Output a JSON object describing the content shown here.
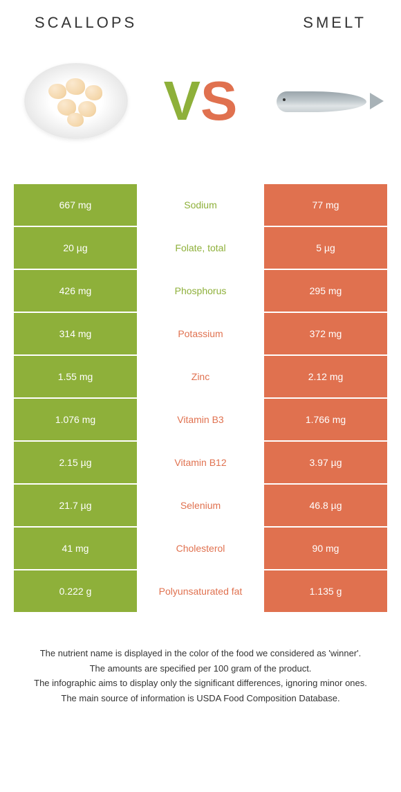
{
  "header": {
    "left_title": "SCALLOPS",
    "right_title": "SMELT"
  },
  "vs": {
    "v": "V",
    "s": "S"
  },
  "colors": {
    "green": "#8eb03a",
    "orange": "#e0714f",
    "bg": "#ffffff"
  },
  "rows": [
    {
      "nutrient": "Sodium",
      "left": "667 mg",
      "right": "77 mg",
      "winner": "left"
    },
    {
      "nutrient": "Folate, total",
      "left": "20 µg",
      "right": "5 µg",
      "winner": "left"
    },
    {
      "nutrient": "Phosphorus",
      "left": "426 mg",
      "right": "295 mg",
      "winner": "left"
    },
    {
      "nutrient": "Potassium",
      "left": "314 mg",
      "right": "372 mg",
      "winner": "right"
    },
    {
      "nutrient": "Zinc",
      "left": "1.55 mg",
      "right": "2.12 mg",
      "winner": "right"
    },
    {
      "nutrient": "Vitamin B3",
      "left": "1.076 mg",
      "right": "1.766 mg",
      "winner": "right"
    },
    {
      "nutrient": "Vitamin B12",
      "left": "2.15 µg",
      "right": "3.97 µg",
      "winner": "right"
    },
    {
      "nutrient": "Selenium",
      "left": "21.7 µg",
      "right": "46.8 µg",
      "winner": "right"
    },
    {
      "nutrient": "Cholesterol",
      "left": "41 mg",
      "right": "90 mg",
      "winner": "right"
    },
    {
      "nutrient": "Polyunsaturated fat",
      "left": "0.222 g",
      "right": "1.135 g",
      "winner": "right"
    }
  ],
  "footer": {
    "line1": "The nutrient name is displayed in the color of the food we considered as 'winner'.",
    "line2": "The amounts are specified per 100 gram of the product.",
    "line3": "The infographic aims to display only the significant differences, ignoring minor ones.",
    "line4": "The main source of information is USDA Food Composition Database."
  }
}
